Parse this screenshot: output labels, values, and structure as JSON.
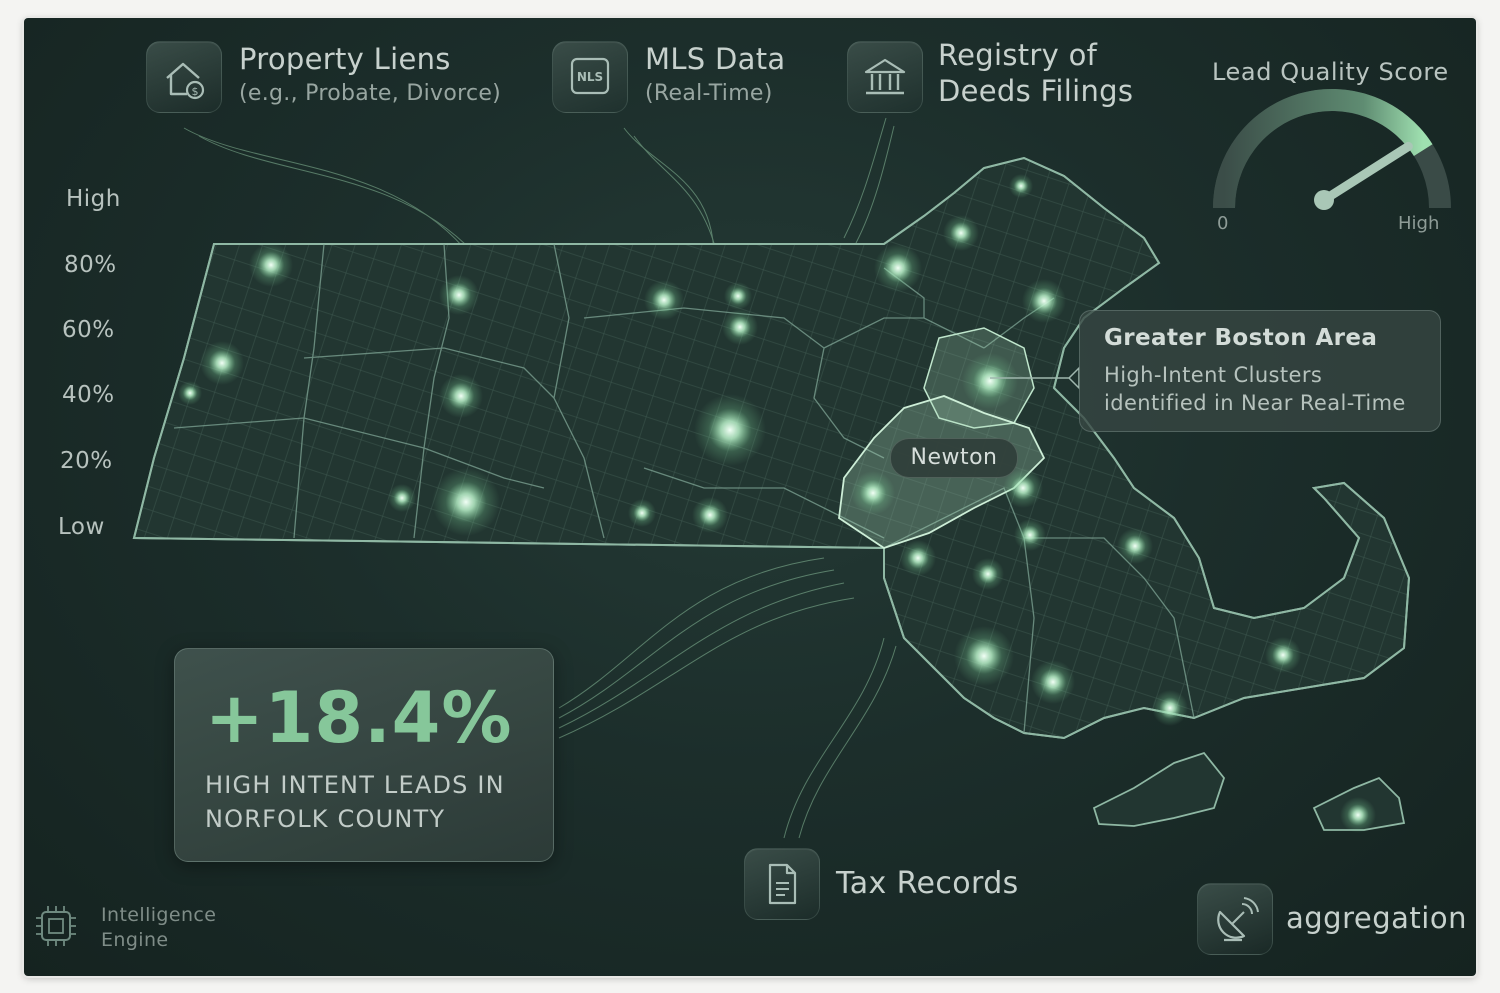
{
  "sources": {
    "property_liens": {
      "title": "Property Liens",
      "subtitle": "(e.g., Probate, Divorce)",
      "icon": "house-dollar-icon"
    },
    "mls_data": {
      "title": "MLS Data",
      "subtitle": "(Real-Time)",
      "icon_text": "NLS",
      "icon": "nls-badge-icon"
    },
    "registry": {
      "title_line1": "Registry of",
      "title_line2": "Deeds Filings",
      "icon": "bank-building-icon"
    },
    "tax_records": {
      "title": "Tax Records",
      "icon": "document-icon"
    },
    "aggregation": {
      "title": "aggregation",
      "icon": "satellite-dish-icon"
    }
  },
  "intensity_scale": {
    "labels": [
      "High",
      "80%",
      "60%",
      "40%",
      "20%",
      "Low"
    ]
  },
  "gauge": {
    "title": "Lead Quality Score",
    "min_label": "0",
    "max_label": "High",
    "level": 0.82
  },
  "callout": {
    "title": "Greater Boston Area",
    "line1": "High-Intent Clusters",
    "line2": "identified in Near Real-Time"
  },
  "highlight": {
    "label": "Newton"
  },
  "stat": {
    "value": "+18.4%",
    "line1": "HIGH INTENT LEADS IN",
    "line2": "NORFOLK COUNTY"
  },
  "engine": {
    "line1": "Intelligence",
    "line2": "Engine",
    "icon": "chip-icon"
  },
  "colors": {
    "accent": "#86c79a",
    "glow": "#b8f0c8",
    "background": "#1c2e2b"
  }
}
